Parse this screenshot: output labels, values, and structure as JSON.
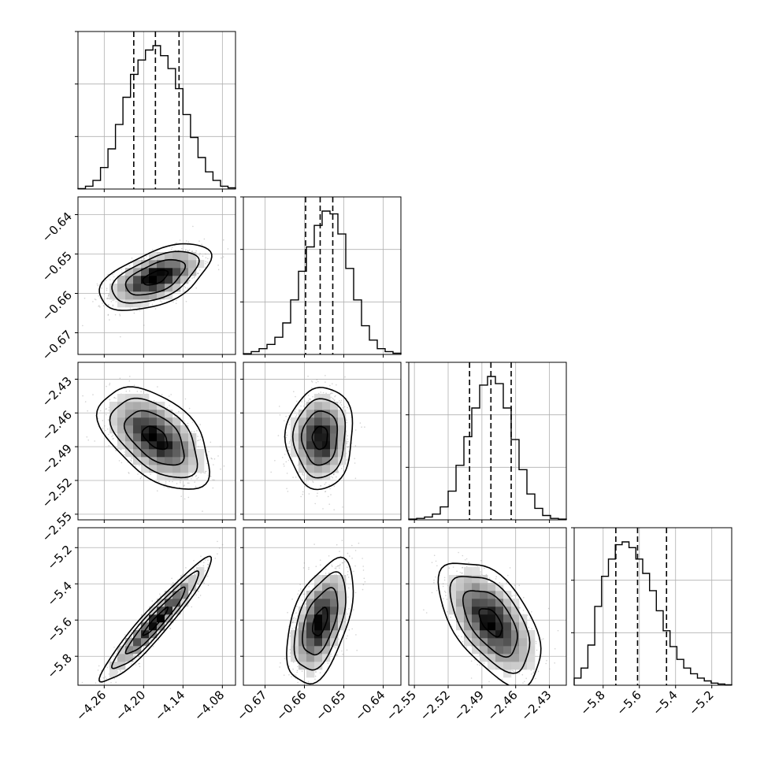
{
  "chart_data": {
    "type": "corner",
    "grid": true,
    "n_params": 4,
    "axes": [
      {
        "range": [
          -4.3,
          -4.06
        ],
        "ticks": [
          -4.26,
          -4.2,
          -4.14,
          -4.08
        ],
        "tick_labels": [
          "−4.26",
          "−4.20",
          "−4.14",
          "−4.08"
        ]
      },
      {
        "range": [
          -0.6755,
          -0.6355
        ],
        "ticks": [
          -0.67,
          -0.66,
          -0.65,
          -0.64
        ],
        "tick_labels": [
          "−0.67",
          "−0.66",
          "−0.65",
          "−0.64"
        ]
      },
      {
        "range": [
          -2.555,
          -2.415
        ],
        "ticks": [
          -2.55,
          -2.52,
          -2.49,
          -2.46,
          -2.43
        ],
        "tick_labels": [
          "−2.55",
          "−2.52",
          "−2.49",
          "−2.46",
          "−2.43"
        ]
      },
      {
        "range": [
          -5.96,
          -5.09
        ],
        "ticks": [
          -5.8,
          -5.6,
          -5.4,
          -5.2
        ],
        "tick_labels": [
          "−5.8",
          "−5.6",
          "−5.4",
          "−5.2"
        ]
      }
    ],
    "quantiles": [
      [
        -4.215,
        -4.182,
        -4.146
      ],
      [
        -0.6597,
        -0.656,
        -0.6528
      ],
      [
        -2.501,
        -2.482,
        -2.464
      ],
      [
        -5.73,
        -5.61,
        -5.45
      ]
    ],
    "histograms": [
      {
        "counts": [
          0.3,
          2,
          6,
          15,
          28,
          45,
          64,
          80,
          90,
          97,
          100,
          93,
          84,
          70,
          52,
          36,
          22,
          12,
          6,
          2,
          0.8
        ]
      },
      {
        "counts": [
          0.5,
          2,
          4,
          7,
          12,
          22,
          38,
          58,
          75,
          90,
          100,
          98,
          84,
          60,
          38,
          20,
          10,
          4,
          2,
          0.8
        ]
      },
      {
        "counts": [
          0.5,
          1,
          2,
          4,
          9,
          20,
          38,
          58,
          78,
          94,
          100,
          95,
          78,
          56,
          35,
          18,
          8,
          3,
          1,
          0.5
        ]
      },
      {
        "counts": [
          5,
          12,
          28,
          55,
          76,
          88,
          98,
          100,
          96,
          88,
          78,
          66,
          52,
          38,
          27,
          18,
          12,
          8,
          5,
          3,
          1.5,
          0.8,
          0.3
        ]
      }
    ],
    "pairs": [
      {
        "x": 0,
        "y": 1,
        "corr": 0.55
      },
      {
        "x": 0,
        "y": 2,
        "corr": -0.5
      },
      {
        "x": 1,
        "y": 2,
        "corr": 0.05
      },
      {
        "x": 0,
        "y": 3,
        "corr": 0.95
      },
      {
        "x": 1,
        "y": 3,
        "corr": 0.5
      },
      {
        "x": 2,
        "y": 3,
        "corr": -0.55
      }
    ]
  }
}
